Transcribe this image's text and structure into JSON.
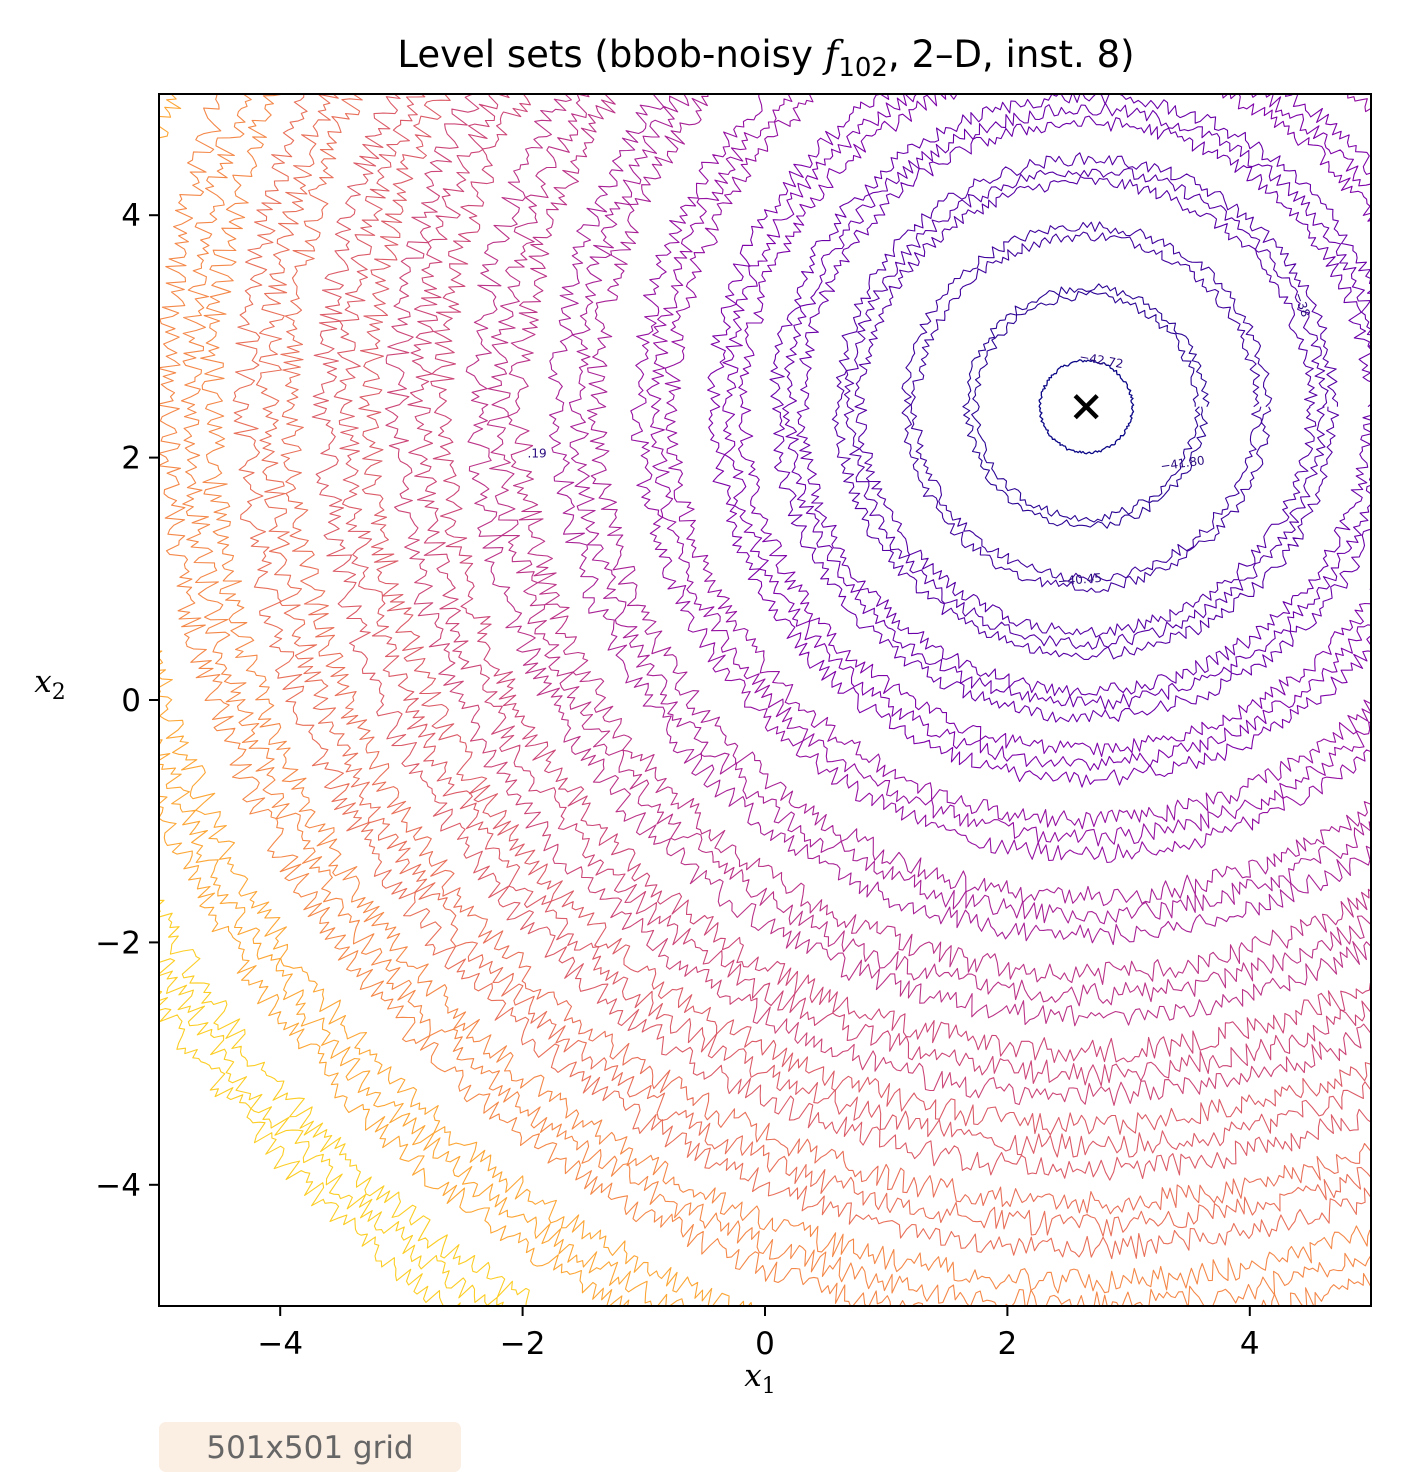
{
  "chart_data": {
    "type": "contour",
    "title": {
      "pre": "Level sets (bbob-noisy ",
      "fname": "f",
      "fsub": "102",
      "post": ", 2–D, inst. 8)"
    },
    "xlabel": {
      "var": "x",
      "sub": "1"
    },
    "ylabel": {
      "var": "x",
      "sub": "2"
    },
    "xlim": [
      -5,
      5
    ],
    "ylim": [
      -5,
      5
    ],
    "xticks": [
      -4,
      -2,
      0,
      2,
      4
    ],
    "yticks": [
      -4,
      -2,
      0,
      2,
      4
    ],
    "xtick_labels": [
      "−4",
      "−2",
      "0",
      "2",
      "4"
    ],
    "ytick_labels": [
      "−4",
      "−2",
      "0",
      "2",
      "4"
    ],
    "colormap": "plasma",
    "optimum": {
      "x": 2.65,
      "y": 2.42,
      "marker": "x"
    },
    "levels": [
      {
        "radius": 0.38,
        "color": "#0d0887"
      },
      {
        "radius": 0.95,
        "color": "#2c0594"
      },
      {
        "radius": 1.45,
        "color": "#41049d"
      },
      {
        "radius": 1.95,
        "color": "#5601a4"
      },
      {
        "radius": 2.45,
        "color": "#6a00a8"
      },
      {
        "radius": 2.95,
        "color": "#7e03a8"
      },
      {
        "radius": 3.55,
        "color": "#9511a1"
      },
      {
        "radius": 4.2,
        "color": "#a82296"
      },
      {
        "radius": 4.85,
        "color": "#bb3488"
      },
      {
        "radius": 5.5,
        "color": "#cc4778"
      },
      {
        "radius": 6.1,
        "color": "#db5c68"
      },
      {
        "radius": 6.75,
        "color": "#e8705a"
      },
      {
        "radius": 7.4,
        "color": "#f48849"
      },
      {
        "radius": 8.15,
        "color": "#fca636"
      },
      {
        "radius": 8.9,
        "color": "#fccd25"
      }
    ],
    "contour_labels": [
      {
        "text": "−42.72",
        "x": 2.77,
        "y": 2.77,
        "rotate": 10
      },
      {
        "text": "−41.80",
        "x": 3.45,
        "y": 1.92,
        "rotate": -8
      },
      {
        "text": "−40.45",
        "x": 2.6,
        "y": 0.96,
        "rotate": -5
      },
      {
        "text": "−38",
        "x": 4.4,
        "y": 3.25,
        "rotate": 70
      },
      {
        "text": ".19",
        "x": -1.88,
        "y": 2.0,
        "rotate": 0
      }
    ],
    "grid": false,
    "legend": false
  },
  "annotation": {
    "grid_size": "501x501 grid",
    "badge_color": "#fbeee2"
  }
}
